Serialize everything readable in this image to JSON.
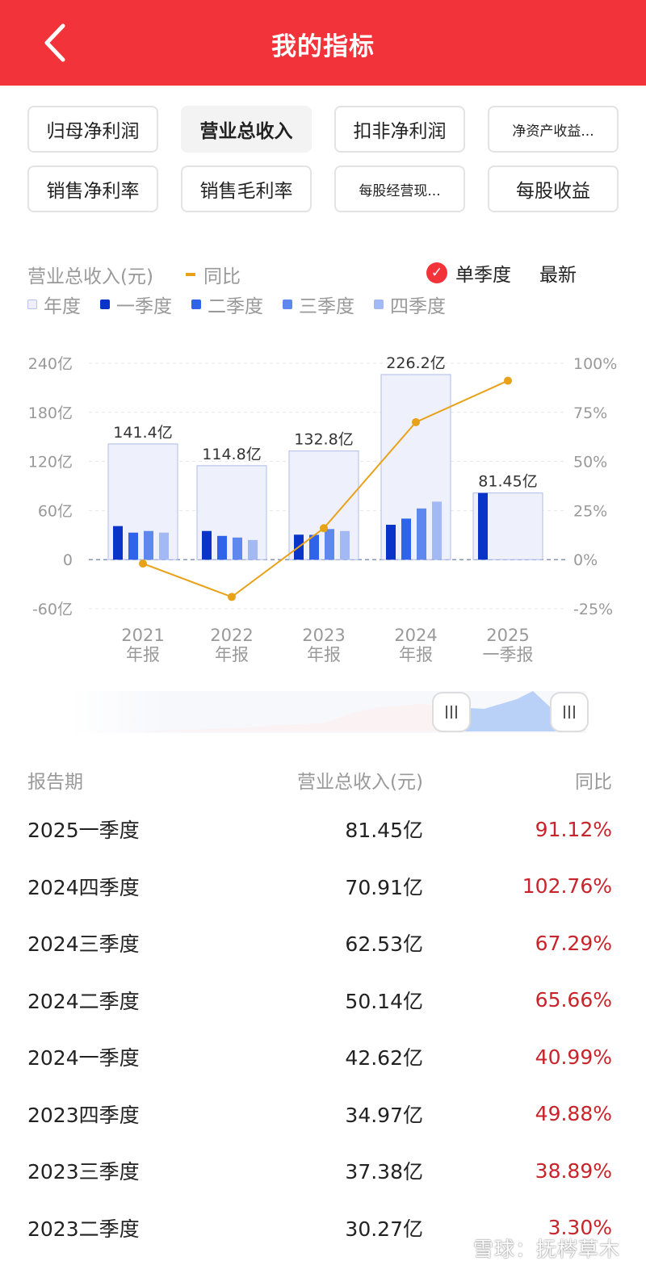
{
  "header": {
    "title": "我的指标"
  },
  "metric_tabs": [
    {
      "label": "归母净利润",
      "small": false,
      "active": false
    },
    {
      "label": "营业总收入",
      "small": false,
      "active": true
    },
    {
      "label": "扣非净利润",
      "small": false,
      "active": false
    },
    {
      "label": "净资产收益...",
      "small": true,
      "active": false
    },
    {
      "label": "销售净利率",
      "small": false,
      "active": false
    },
    {
      "label": "销售毛利率",
      "small": false,
      "active": false
    },
    {
      "label": "每股经营现...",
      "small": true,
      "active": false
    },
    {
      "label": "每股收益",
      "small": false,
      "active": false
    }
  ],
  "chart_header": {
    "metric_label": "营业总收入(元)",
    "yoy_label": "同比",
    "single_quarter_label": "单季度",
    "latest_label": "最新"
  },
  "legend": [
    {
      "label": "年度",
      "color": "#eeeefc"
    },
    {
      "label": "一季度",
      "color": "#0a34c8"
    },
    {
      "label": "二季度",
      "color": "#2f63ea"
    },
    {
      "label": "三季度",
      "color": "#5f88ee"
    },
    {
      "label": "四季度",
      "color": "#a3b9f4"
    }
  ],
  "chart_data": {
    "type": "bar",
    "categories": [
      "2021\n年报",
      "2022\n年报",
      "2023\n年报",
      "2024\n年报",
      "2025\n一季报"
    ],
    "annual": {
      "name": "年度",
      "values": [
        141.4,
        114.8,
        132.8,
        226.2,
        81.45
      ],
      "labels": [
        "141.4亿",
        "114.8亿",
        "132.8亿",
        "226.2亿",
        "81.45亿"
      ]
    },
    "series": [
      {
        "name": "一季度",
        "values": [
          41,
          35,
          30.5,
          42.62,
          81.45
        ]
      },
      {
        "name": "二季度",
        "values": [
          33,
          29,
          30.27,
          50.14,
          null
        ]
      },
      {
        "name": "三季度",
        "values": [
          35,
          27,
          37.38,
          62.53,
          null
        ]
      },
      {
        "name": "四季度",
        "values": [
          33,
          24,
          34.97,
          70.91,
          null
        ]
      }
    ],
    "yoy_line": {
      "name": "同比",
      "values": [
        -2,
        -19,
        16,
        70,
        91.12
      ],
      "color": "#e8a21a"
    },
    "y_left": {
      "ticks": [
        "240亿",
        "180亿",
        "120亿",
        "60亿",
        "0",
        "-60亿"
      ],
      "min": -60,
      "max": 240
    },
    "y_right": {
      "ticks": [
        "100%",
        "75%",
        "50%",
        "25%",
        "0%",
        "-25%"
      ],
      "min": -25,
      "max": 100
    },
    "grid": true
  },
  "table": {
    "headers": [
      "报告期",
      "营业总收入(元)",
      "同比"
    ],
    "rows": [
      {
        "period": "2025一季度",
        "revenue": "81.45亿",
        "yoy": "91.12%"
      },
      {
        "period": "2024四季度",
        "revenue": "70.91亿",
        "yoy": "102.76%"
      },
      {
        "period": "2024三季度",
        "revenue": "62.53亿",
        "yoy": "67.29%"
      },
      {
        "period": "2024二季度",
        "revenue": "50.14亿",
        "yoy": "65.66%"
      },
      {
        "period": "2024一季度",
        "revenue": "42.62亿",
        "yoy": "40.99%"
      },
      {
        "period": "2023四季度",
        "revenue": "34.97亿",
        "yoy": "49.88%"
      },
      {
        "period": "2023三季度",
        "revenue": "37.38亿",
        "yoy": "38.89%"
      },
      {
        "period": "2023二季度",
        "revenue": "30.27亿",
        "yoy": "3.30%"
      }
    ]
  },
  "watermark": "雪球：抚梣草木"
}
